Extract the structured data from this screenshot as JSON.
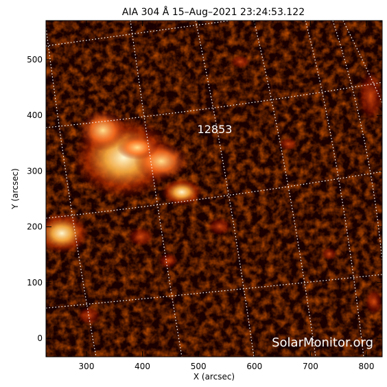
{
  "title": "AIA 304 Å 15–Aug–2021 23:24:53.122",
  "xlabel": "X (arcsec)",
  "ylabel": "Y (arcsec)",
  "x_ticks": [
    "300",
    "400",
    "500",
    "600",
    "700",
    "800"
  ],
  "y_ticks": [
    "0",
    "100",
    "200",
    "300",
    "400",
    "500"
  ],
  "active_region": "12853",
  "watermark": "SolarMonitor.org",
  "colors": {
    "background": "#ffffff",
    "image_dark": "#1a0000",
    "image_bright": "#fff3c0",
    "grid": "#ffffff"
  }
}
